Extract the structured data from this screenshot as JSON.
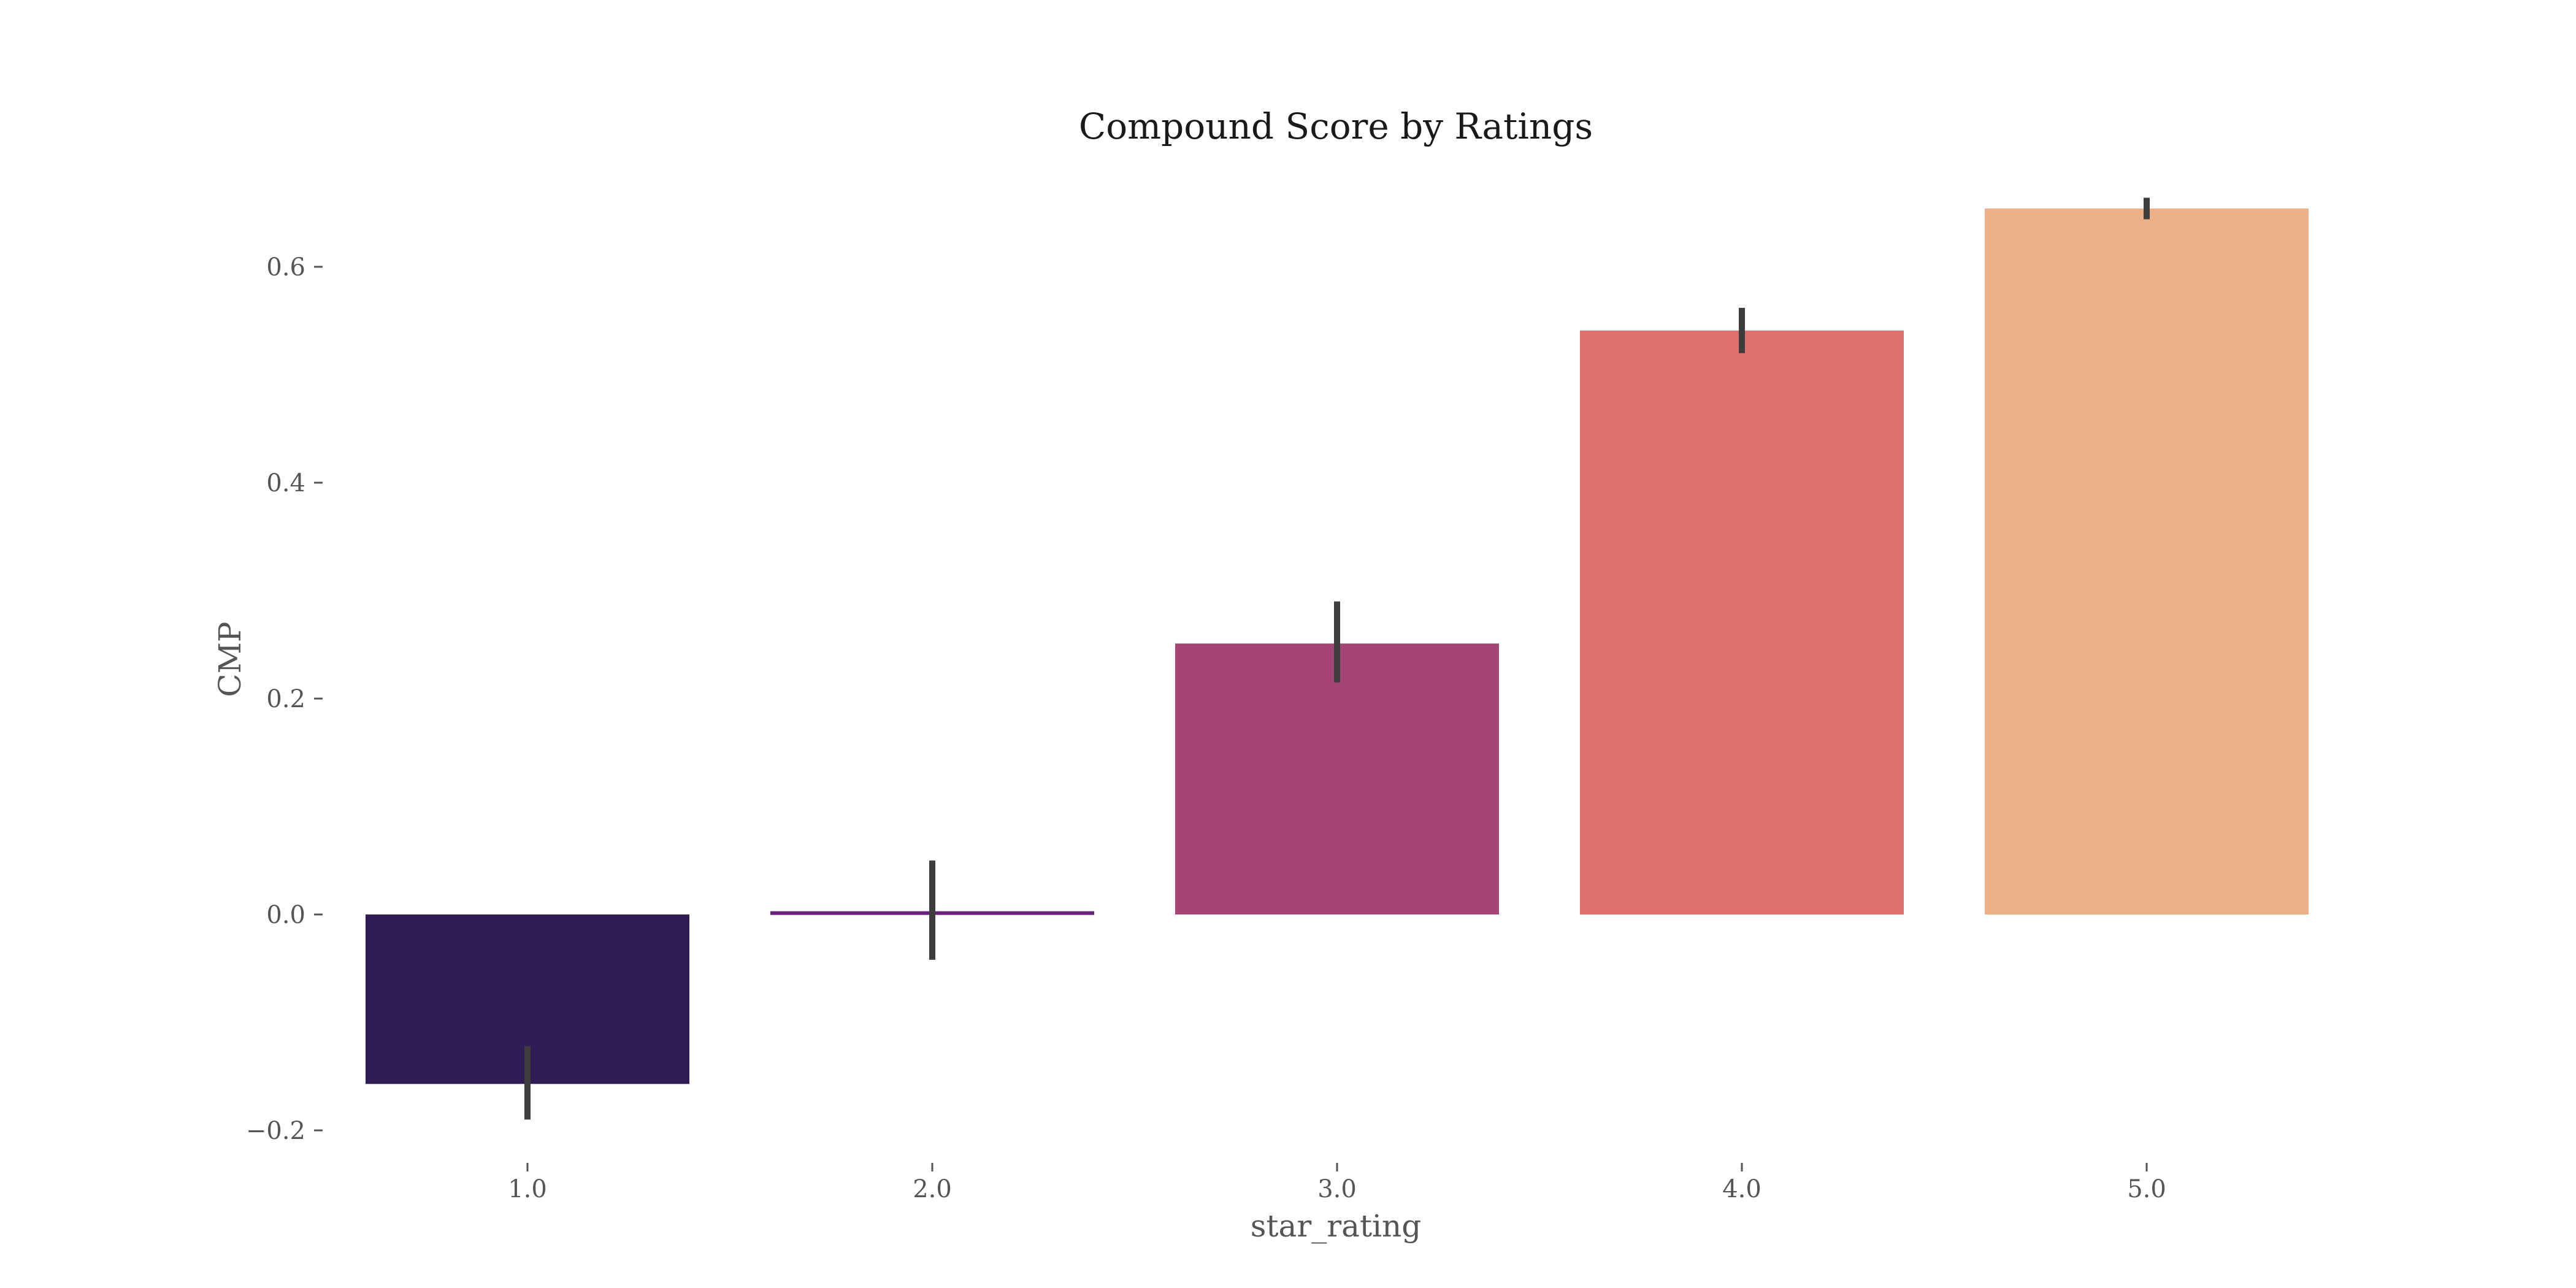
{
  "chart_data": {
    "type": "bar",
    "title": "Compound Score by Ratings",
    "xlabel": "star_rating",
    "ylabel": "CMP",
    "categories": [
      "1.0",
      "2.0",
      "3.0",
      "4.0",
      "5.0"
    ],
    "values": [
      -0.157,
      0.003,
      0.251,
      0.541,
      0.654
    ],
    "error_low": [
      -0.19,
      -0.042,
      0.215,
      0.52,
      0.644
    ],
    "error_high": [
      -0.122,
      0.05,
      0.29,
      0.562,
      0.664
    ],
    "colors": [
      "#311b55",
      "#6b1f7f",
      "#a54576",
      "#de716f",
      "#edb18a"
    ],
    "error_color": "#3d3d3d",
    "yticks": [
      -0.2,
      0.0,
      0.2,
      0.4,
      0.6
    ],
    "ytick_labels": [
      "−0.2",
      "0.0",
      "0.2",
      "0.4",
      "0.6"
    ],
    "ylim": [
      -0.215,
      0.72
    ],
    "grid": false
  }
}
